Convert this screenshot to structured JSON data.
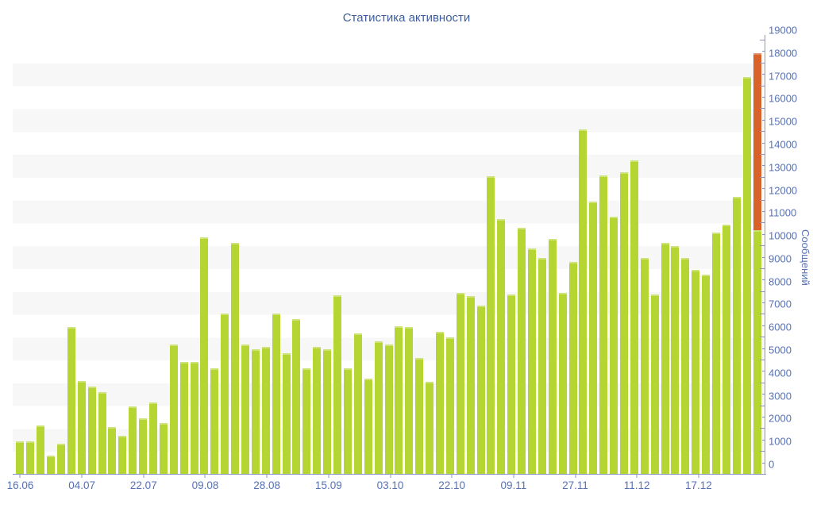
{
  "chart_data": {
    "type": "bar",
    "title": "Статистика активности",
    "ylabel": "Сообщений",
    "xlabel": "",
    "ylim": [
      0,
      19000
    ],
    "y_major_step": 1000,
    "y_minor_step": 500,
    "legend": "none",
    "grid": "alternating horizontal stripes (gray band each odd thousand: 1000-2000, 3000-4000, ... 17000-18000)",
    "x_tick_labels": [
      "16.06",
      "04.07",
      "22.07",
      "09.08",
      "28.08",
      "15.09",
      "03.10",
      "22.10",
      "09.11",
      "27.11",
      "11.12",
      "17.12"
    ],
    "x_tick_bar_indices": [
      0,
      6,
      12,
      18,
      24,
      30,
      36,
      42,
      48,
      54,
      60,
      66
    ],
    "values": [
      1450,
      1450,
      2150,
      850,
      1350,
      6450,
      4100,
      3850,
      3600,
      2100,
      1700,
      3000,
      2450,
      3150,
      2250,
      5700,
      4950,
      4950,
      10400,
      4650,
      7050,
      10150,
      5700,
      5500,
      5600,
      7050,
      5300,
      6800,
      4650,
      5600,
      5500,
      7850,
      4650,
      6200,
      4200,
      5850,
      5700,
      6500,
      6450,
      5100,
      4050,
      6250,
      6000,
      7950,
      7800,
      7400,
      13050,
      11200,
      7900,
      10800,
      9900,
      9500,
      10300,
      7950,
      9300,
      15100,
      11950,
      13100,
      11300,
      13250,
      13750,
      9500,
      7900,
      10150,
      10000,
      9500,
      8950,
      8750,
      10600,
      10950,
      12150,
      17400,
      18450
    ],
    "last_bar": {
      "total": 18450,
      "green_portion_top": 10700,
      "orange_portion": "from 10700 to 18450",
      "note": "final (current) bar drawn green below split and orange above"
    },
    "colors": {
      "bar": "#b4d532",
      "highlight": "#d8622a",
      "stripe": "#f7f7f7",
      "axis": "#8996c6",
      "tick_text": "#5671b5",
      "title_text": "#3d5e9e"
    }
  }
}
